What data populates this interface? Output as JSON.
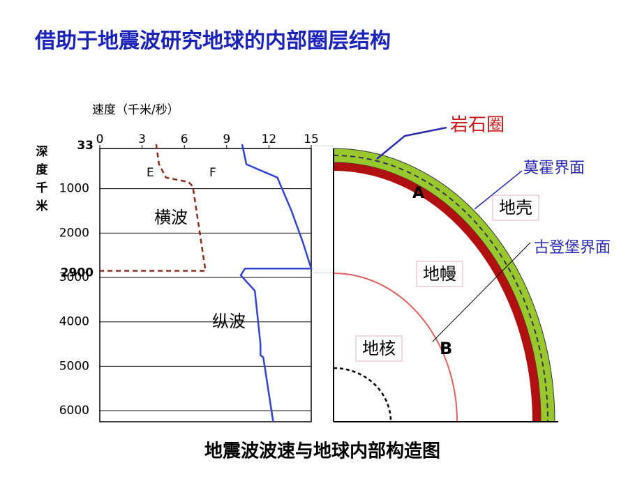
{
  "slide": {
    "title": "借助于地震波研究地球的内部圈层结构",
    "caption": "地震波波速与地球内部构造图"
  },
  "chart_data": {
    "type": "line",
    "x_label": "速度（千米/秒）",
    "y_label": "深度千米",
    "xlim": [
      0,
      15
    ],
    "xticks": [
      0,
      3,
      6,
      9,
      12,
      15
    ],
    "ylim": [
      0,
      6250
    ],
    "yticks": [
      1000,
      2000,
      3000,
      4000,
      5000,
      6000
    ],
    "y_inverted": true,
    "marked_depths": [
      33,
      2900
    ],
    "marked_color": "#1a9a8a",
    "series": [
      {
        "name": "横波",
        "color": "#8b2a1e",
        "dashed": true,
        "x": [
          4,
          4.2,
          4.7,
          6.3,
          6.6,
          7.5,
          0
        ],
        "y": [
          0,
          450,
          750,
          850,
          950,
          2850,
          2850
        ]
      },
      {
        "name": "纵波",
        "color": "#3344cc",
        "dashed": false,
        "x": [
          10.1,
          10.4,
          12.6,
          13.6,
          14.4,
          15,
          10.3,
          10,
          11,
          11.4,
          11.4,
          11.6,
          12.3
        ],
        "y": [
          0,
          450,
          750,
          1500,
          2200,
          2800,
          2800,
          2950,
          3300,
          4500,
          4750,
          4800,
          6250
        ]
      }
    ],
    "annotations": [
      "E",
      "F"
    ]
  },
  "diagram": {
    "lithosphere": "岩石圈",
    "moho": "莫霍界面",
    "crust": "地壳",
    "gutenberg": "古登堡界面",
    "mantle": "地幔",
    "core": "地核",
    "a": "A",
    "b": "B"
  }
}
